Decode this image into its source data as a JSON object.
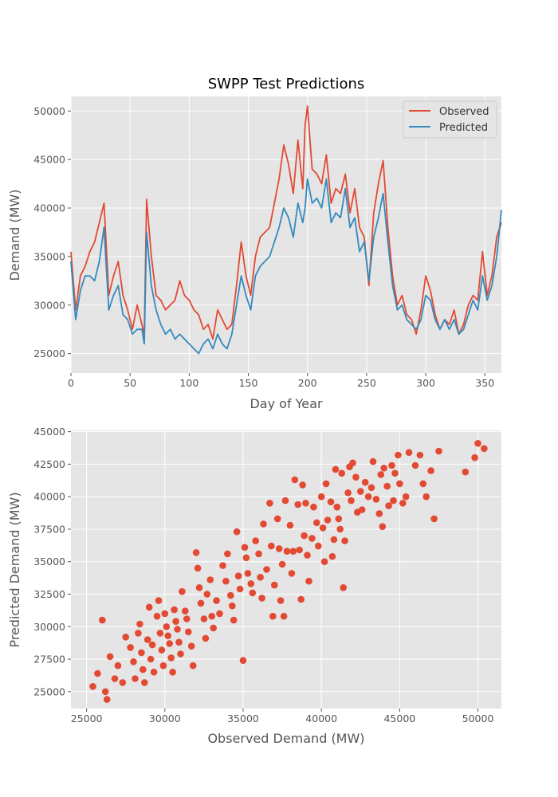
{
  "colors": {
    "background": "#ffffff",
    "axes_face": "#e5e5e5",
    "grid": "#ffffff",
    "text": "#555555",
    "title": "#000000",
    "observed": "#e24a33",
    "predicted": "#348abd"
  },
  "chart_data": [
    {
      "type": "line",
      "title": "SWPP Test Predictions",
      "xlabel": "Day of Year",
      "ylabel": "Demand (MW)",
      "xlim": [
        0,
        364
      ],
      "ylim": [
        23000,
        51500
      ],
      "xticks": [
        0,
        50,
        100,
        150,
        200,
        250,
        300,
        350
      ],
      "yticks": [
        25000,
        30000,
        35000,
        40000,
        45000,
        50000
      ],
      "grid": true,
      "legend_position": "top-right",
      "x": [
        0,
        4,
        8,
        12,
        16,
        20,
        24,
        28,
        32,
        36,
        40,
        44,
        48,
        52,
        56,
        60,
        62,
        64,
        68,
        72,
        76,
        80,
        84,
        88,
        92,
        96,
        100,
        104,
        108,
        112,
        116,
        120,
        124,
        128,
        132,
        136,
        140,
        144,
        148,
        152,
        156,
        160,
        164,
        168,
        172,
        176,
        180,
        184,
        188,
        192,
        196,
        198,
        200,
        204,
        208,
        212,
        216,
        220,
        224,
        228,
        232,
        236,
        240,
        244,
        248,
        252,
        256,
        260,
        264,
        268,
        272,
        276,
        280,
        284,
        288,
        292,
        296,
        300,
        304,
        308,
        312,
        316,
        320,
        324,
        328,
        332,
        336,
        340,
        344,
        348,
        352,
        356,
        360,
        364
      ],
      "series": [
        {
          "name": "Observed",
          "values": [
            35500,
            29500,
            33000,
            34000,
            35500,
            36500,
            38500,
            40500,
            31000,
            33000,
            34500,
            31000,
            29500,
            27500,
            30000,
            28000,
            27000,
            40900,
            35000,
            31000,
            30500,
            29500,
            30000,
            30500,
            32500,
            31000,
            30500,
            29500,
            29000,
            27500,
            28000,
            26500,
            29500,
            28500,
            27500,
            28000,
            32000,
            36500,
            33000,
            31000,
            35000,
            37000,
            37500,
            38000,
            40500,
            43000,
            46500,
            44500,
            41500,
            47000,
            42000,
            48500,
            50500,
            44000,
            43500,
            42500,
            45500,
            40500,
            42000,
            41500,
            43500,
            39500,
            42000,
            38000,
            37000,
            32000,
            39500,
            42500,
            44900,
            38000,
            33000,
            30000,
            31000,
            29000,
            28500,
            27000,
            29500,
            33000,
            31500,
            29000,
            27500,
            28500,
            28000,
            29500,
            27000,
            28000,
            30000,
            31000,
            30500,
            35500,
            31000,
            33000,
            37000,
            38500
          ]
        },
        {
          "name": "Predicted",
          "values": [
            34500,
            28500,
            31500,
            33000,
            33000,
            32500,
            34500,
            38000,
            29500,
            31000,
            32000,
            29000,
            28500,
            27000,
            27500,
            27500,
            26000,
            37500,
            32000,
            29500,
            28000,
            27000,
            27500,
            26500,
            27000,
            26500,
            26000,
            25500,
            25000,
            26000,
            26500,
            25500,
            27000,
            26000,
            25500,
            27000,
            30000,
            33000,
            31000,
            29500,
            33000,
            34000,
            34500,
            35000,
            36500,
            38000,
            40000,
            39000,
            37000,
            40500,
            38500,
            40000,
            43000,
            40500,
            41000,
            40000,
            43000,
            38500,
            39500,
            39000,
            42000,
            38000,
            39000,
            35500,
            36500,
            32500,
            37000,
            39000,
            41500,
            36500,
            32000,
            29500,
            30000,
            28500,
            28000,
            27500,
            28500,
            31000,
            30500,
            28500,
            27500,
            28500,
            27500,
            28500,
            27000,
            27500,
            29000,
            30500,
            29500,
            33000,
            30500,
            32000,
            35000,
            39800
          ]
        }
      ]
    },
    {
      "type": "scatter",
      "xlabel": "Observed Demand (MW)",
      "ylabel": "Predicted Demand (MW)",
      "xlim": [
        24000,
        51500
      ],
      "ylim": [
        23700,
        45100
      ],
      "xticks": [
        25000,
        30000,
        35000,
        40000,
        45000,
        50000
      ],
      "yticks": [
        25000,
        27500,
        30000,
        32500,
        35000,
        37500,
        40000,
        42500,
        45000
      ],
      "grid": true,
      "points": [
        [
          25400,
          25400
        ],
        [
          25700,
          26400
        ],
        [
          26000,
          30500
        ],
        [
          26200,
          25000
        ],
        [
          26300,
          24400
        ],
        [
          26500,
          27700
        ],
        [
          26800,
          26000
        ],
        [
          27000,
          27000
        ],
        [
          27300,
          25700
        ],
        [
          27500,
          29200
        ],
        [
          27800,
          28400
        ],
        [
          28000,
          27300
        ],
        [
          28100,
          26000
        ],
        [
          28300,
          29500
        ],
        [
          28400,
          30200
        ],
        [
          28500,
          28000
        ],
        [
          28600,
          26700
        ],
        [
          28700,
          25700
        ],
        [
          28900,
          29000
        ],
        [
          29000,
          31500
        ],
        [
          29100,
          27500
        ],
        [
          29200,
          28600
        ],
        [
          29300,
          26500
        ],
        [
          29500,
          30800
        ],
        [
          29600,
          32000
        ],
        [
          29700,
          29500
        ],
        [
          29800,
          28200
        ],
        [
          29900,
          27000
        ],
        [
          30000,
          31000
        ],
        [
          30100,
          30000
        ],
        [
          30200,
          29300
        ],
        [
          30300,
          28700
        ],
        [
          30400,
          27600
        ],
        [
          30500,
          26500
        ],
        [
          30600,
          31300
        ],
        [
          30700,
          30400
        ],
        [
          30800,
          29800
        ],
        [
          30900,
          28800
        ],
        [
          31000,
          27900
        ],
        [
          31100,
          32700
        ],
        [
          31300,
          31200
        ],
        [
          31400,
          30600
        ],
        [
          31500,
          29600
        ],
        [
          31700,
          28500
        ],
        [
          31800,
          27000
        ],
        [
          32000,
          35700
        ],
        [
          32100,
          34500
        ],
        [
          32200,
          33000
        ],
        [
          32300,
          31800
        ],
        [
          32500,
          30600
        ],
        [
          32600,
          29100
        ],
        [
          32700,
          32500
        ],
        [
          32900,
          33600
        ],
        [
          33000,
          30800
        ],
        [
          33100,
          29900
        ],
        [
          33300,
          32000
        ],
        [
          33500,
          31000
        ],
        [
          33700,
          34700
        ],
        [
          33900,
          33500
        ],
        [
          34000,
          35600
        ],
        [
          34200,
          32400
        ],
        [
          34300,
          31600
        ],
        [
          34400,
          30500
        ],
        [
          34600,
          37300
        ],
        [
          34700,
          33900
        ],
        [
          34800,
          32900
        ],
        [
          35000,
          27400
        ],
        [
          35100,
          36100
        ],
        [
          35200,
          35300
        ],
        [
          35300,
          34100
        ],
        [
          35500,
          33300
        ],
        [
          35600,
          32600
        ],
        [
          35800,
          36600
        ],
        [
          36000,
          35600
        ],
        [
          36100,
          33800
        ],
        [
          36200,
          32200
        ],
        [
          36300,
          37900
        ],
        [
          36500,
          34400
        ],
        [
          36700,
          39500
        ],
        [
          36800,
          36200
        ],
        [
          36900,
          30800
        ],
        [
          37000,
          33200
        ],
        [
          37200,
          38300
        ],
        [
          37300,
          36000
        ],
        [
          37400,
          32000
        ],
        [
          37500,
          34800
        ],
        [
          37600,
          30800
        ],
        [
          37700,
          39700
        ],
        [
          37800,
          35800
        ],
        [
          38000,
          37800
        ],
        [
          38100,
          34100
        ],
        [
          38200,
          35800
        ],
        [
          38300,
          41300
        ],
        [
          38500,
          39400
        ],
        [
          38600,
          35900
        ],
        [
          38700,
          32100
        ],
        [
          38800,
          40900
        ],
        [
          38900,
          37000
        ],
        [
          39000,
          39500
        ],
        [
          39100,
          35500
        ],
        [
          39200,
          33500
        ],
        [
          39400,
          36800
        ],
        [
          39500,
          39200
        ],
        [
          39700,
          38000
        ],
        [
          39800,
          36200
        ],
        [
          40000,
          40000
        ],
        [
          40100,
          37600
        ],
        [
          40200,
          35000
        ],
        [
          40300,
          41000
        ],
        [
          40400,
          38200
        ],
        [
          40600,
          39600
        ],
        [
          40700,
          35400
        ],
        [
          40800,
          36700
        ],
        [
          40900,
          42100
        ],
        [
          41000,
          39200
        ],
        [
          41100,
          38300
        ],
        [
          41200,
          37500
        ],
        [
          41300,
          41800
        ],
        [
          41400,
          33000
        ],
        [
          41500,
          36600
        ],
        [
          41700,
          40300
        ],
        [
          41800,
          42300
        ],
        [
          41900,
          39700
        ],
        [
          42000,
          42600
        ],
        [
          42200,
          41500
        ],
        [
          42300,
          38800
        ],
        [
          42500,
          40400
        ],
        [
          42600,
          39000
        ],
        [
          42800,
          41100
        ],
        [
          43000,
          40000
        ],
        [
          43200,
          40700
        ],
        [
          43300,
          42700
        ],
        [
          43500,
          39800
        ],
        [
          43700,
          38700
        ],
        [
          43800,
          41700
        ],
        [
          43900,
          37700
        ],
        [
          44000,
          42200
        ],
        [
          44200,
          40800
        ],
        [
          44300,
          39300
        ],
        [
          44500,
          42400
        ],
        [
          44600,
          39700
        ],
        [
          44700,
          41800
        ],
        [
          44900,
          43200
        ],
        [
          45000,
          41000
        ],
        [
          45200,
          39500
        ],
        [
          45400,
          40000
        ],
        [
          45600,
          43400
        ],
        [
          46000,
          42400
        ],
        [
          46300,
          43200
        ],
        [
          46500,
          41000
        ],
        [
          46700,
          40000
        ],
        [
          47000,
          42000
        ],
        [
          47200,
          38300
        ],
        [
          47500,
          43500
        ],
        [
          49200,
          41900
        ],
        [
          49800,
          43000
        ],
        [
          50000,
          44100
        ],
        [
          50400,
          43700
        ]
      ]
    }
  ]
}
